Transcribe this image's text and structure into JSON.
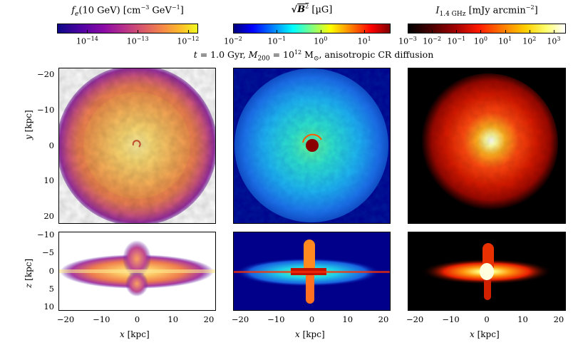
{
  "colorbars": [
    {
      "title": "f_e(10 GeV) [cm^-3 GeV^-1]",
      "title_main": "f",
      "title_sub": "e",
      "title_rest": "(10 GeV) [cm",
      "title_exp1": "−3",
      "title_mid": " GeV",
      "title_exp2": "−1",
      "title_end": "]",
      "ticks": [
        "10^-14",
        "10^-13",
        "10^-12"
      ],
      "tick_labels": [
        {
          "base": "10",
          "exp": "−14"
        },
        {
          "base": "10",
          "exp": "−13"
        },
        {
          "base": "10",
          "exp": "−12"
        }
      ],
      "colormap": "plasma",
      "colors": [
        "#0d0887",
        "#7e03a8",
        "#cc4778",
        "#f89540",
        "#f0f921"
      ]
    },
    {
      "title": "sqrt(B^2) [µG]",
      "title_text": "B",
      "title_unit": " [µG]",
      "tick_labels": [
        {
          "base": "10",
          "exp": "−2"
        },
        {
          "base": "10",
          "exp": "−1"
        },
        {
          "base": "10",
          "exp": "0"
        },
        {
          "base": "10",
          "exp": "1"
        }
      ],
      "colormap": "jet",
      "colors": [
        "#000080",
        "#0000ff",
        "#00ffff",
        "#ffff00",
        "#ff0000",
        "#800000"
      ]
    },
    {
      "title": "I_1.4 GHz [mJy arcmin^-2]",
      "title_main": "I",
      "title_sub": "1.4 GHz",
      "title_rest": " [mJy arcmin",
      "title_exp": "−2",
      "title_end": "]",
      "tick_labels": [
        {
          "base": "10",
          "exp": "−3"
        },
        {
          "base": "10",
          "exp": "−2"
        },
        {
          "base": "10",
          "exp": "−1"
        },
        {
          "base": "10",
          "exp": "0"
        },
        {
          "base": "10",
          "exp": "1"
        },
        {
          "base": "10",
          "exp": "2"
        },
        {
          "base": "10",
          "exp": "3"
        }
      ],
      "colormap": "hot",
      "colors": [
        "#000000",
        "#800000",
        "#ff2000",
        "#ff9000",
        "#ffff40",
        "#ffffff"
      ]
    }
  ],
  "subtitle": {
    "t_label": "t",
    "t_value": " = 1.0 Gyr, ",
    "m_label": "M",
    "m_sub": "200",
    "m_value": " = 10",
    "m_exp": "12",
    "m_unit": " M",
    "m_unit_sub": "⊙",
    "rest": ", anisotropic CR diffusion"
  },
  "axes": {
    "y_label_top": "y [kpc]",
    "y_label_bottom": "z [kpc]",
    "x_label": "x [kpc]",
    "y_ticks_top": [
      "20",
      "10",
      "0",
      "−10",
      "−20"
    ],
    "y_ticks_bottom": [
      "10",
      "5",
      "0",
      "−5",
      "−10"
    ],
    "x_ticks": [
      "−20",
      "−10",
      "0",
      "10",
      "20"
    ]
  },
  "chart_data": {
    "type": "heatmap",
    "title": "t = 1.0 Gyr, M200 = 10^12 Msun, anisotropic CR diffusion",
    "panels": [
      {
        "name": "fe-face-on",
        "quantity": "f_e(10 GeV)",
        "view": "face-on",
        "xlabel": "x [kpc]",
        "ylabel": "y [kpc]",
        "xlim": [
          -22,
          22
        ],
        "ylim": [
          -22,
          22
        ],
        "colormap": "plasma",
        "clim_log10": [
          -14.6,
          -11.8
        ]
      },
      {
        "name": "B-face-on",
        "quantity": "sqrt(B^2) [µG]",
        "view": "face-on",
        "xlabel": "x [kpc]",
        "ylabel": "y [kpc]",
        "xlim": [
          -22,
          22
        ],
        "ylim": [
          -22,
          22
        ],
        "colormap": "jet",
        "clim_log10": [
          -2,
          1.6
        ]
      },
      {
        "name": "I-face-on",
        "quantity": "I_1.4GHz [mJy arcmin^-2]",
        "view": "face-on",
        "xlabel": "x [kpc]",
        "ylabel": "y [kpc]",
        "xlim": [
          -22,
          22
        ],
        "ylim": [
          -22,
          22
        ],
        "colormap": "hot",
        "clim_log10": [
          -3,
          3.5
        ]
      },
      {
        "name": "fe-edge-on",
        "quantity": "f_e(10 GeV)",
        "view": "edge-on",
        "xlabel": "x [kpc]",
        "ylabel": "z [kpc]",
        "xlim": [
          -22,
          22
        ],
        "ylim": [
          -11,
          11
        ],
        "colormap": "plasma"
      },
      {
        "name": "B-edge-on",
        "quantity": "sqrt(B^2) [µG]",
        "view": "edge-on",
        "xlabel": "x [kpc]",
        "ylabel": "z [kpc]",
        "xlim": [
          -22,
          22
        ],
        "ylim": [
          -11,
          11
        ],
        "colormap": "jet"
      },
      {
        "name": "I-edge-on",
        "quantity": "I_1.4GHz",
        "view": "edge-on",
        "xlabel": "x [kpc]",
        "ylabel": "z [kpc]",
        "xlim": [
          -22,
          22
        ],
        "ylim": [
          -11,
          11
        ],
        "colormap": "hot"
      }
    ]
  }
}
